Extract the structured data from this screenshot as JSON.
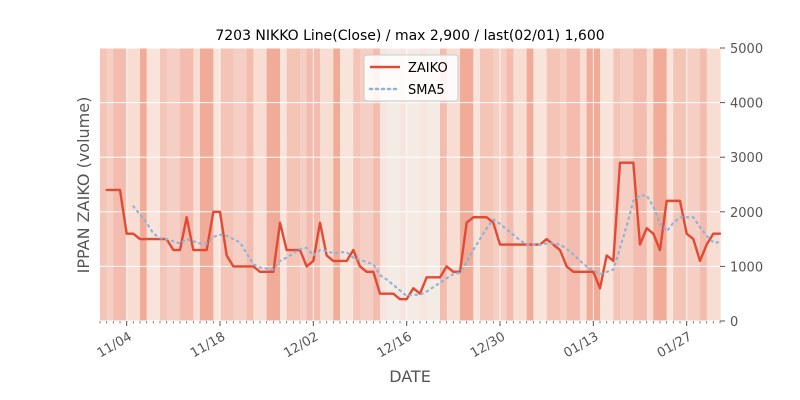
{
  "chart_data": {
    "type": "line",
    "title": "7203 NIKKO Line(Close) / max 2,900 / last(02/01) 1,600",
    "xlabel": "DATE",
    "ylabel": "IPPAN ZAIKO (volume)",
    "ylim": [
      0,
      5000
    ],
    "yticks": [
      "0",
      "1000",
      "2000",
      "3000",
      "4000",
      "5000"
    ],
    "y_axis_side": "right",
    "xtick_labels": [
      "11/04",
      "11/18",
      "12/02",
      "12/16",
      "12/30",
      "01/13",
      "01/27"
    ],
    "x_range": [
      "2024-10-31",
      "2025-02-01"
    ],
    "xtick_dates": [
      "2024-11-04",
      "2024-11-18",
      "2024-12-02",
      "2024-12-16",
      "2024-12-30",
      "2025-01-13",
      "2025-01-27"
    ],
    "grid": true,
    "legend_position": "top-center",
    "background_shading": "daily red bands, intensity varies",
    "series": [
      {
        "name": "ZAIKO",
        "color": "#e24a33",
        "style": "solid",
        "points": [
          [
            "2024-11-01",
            2400
          ],
          [
            "2024-11-02",
            2400
          ],
          [
            "2024-11-03",
            2400
          ],
          [
            "2024-11-04",
            1600
          ],
          [
            "2024-11-05",
            1600
          ],
          [
            "2024-11-06",
            1500
          ],
          [
            "2024-11-07",
            1500
          ],
          [
            "2024-11-08",
            1500
          ],
          [
            "2024-11-09",
            1500
          ],
          [
            "2024-11-10",
            1500
          ],
          [
            "2024-11-11",
            1300
          ],
          [
            "2024-11-12",
            1300
          ],
          [
            "2024-11-13",
            1900
          ],
          [
            "2024-11-14",
            1300
          ],
          [
            "2024-11-15",
            1300
          ],
          [
            "2024-11-16",
            1300
          ],
          [
            "2024-11-17",
            2000
          ],
          [
            "2024-11-18",
            2000
          ],
          [
            "2024-11-19",
            1200
          ],
          [
            "2024-11-20",
            1000
          ],
          [
            "2024-11-21",
            1000
          ],
          [
            "2024-11-22",
            1000
          ],
          [
            "2024-11-23",
            1000
          ],
          [
            "2024-11-24",
            900
          ],
          [
            "2024-11-25",
            900
          ],
          [
            "2024-11-26",
            900
          ],
          [
            "2024-11-27",
            1800
          ],
          [
            "2024-11-28",
            1300
          ],
          [
            "2024-11-29",
            1300
          ],
          [
            "2024-11-30",
            1300
          ],
          [
            "2024-12-01",
            1000
          ],
          [
            "2024-12-02",
            1100
          ],
          [
            "2024-12-03",
            1800
          ],
          [
            "2024-12-04",
            1200
          ],
          [
            "2024-12-05",
            1100
          ],
          [
            "2024-12-06",
            1100
          ],
          [
            "2024-12-07",
            1100
          ],
          [
            "2024-12-08",
            1300
          ],
          [
            "2024-12-09",
            1000
          ],
          [
            "2024-12-10",
            900
          ],
          [
            "2024-12-11",
            900
          ],
          [
            "2024-12-12",
            500
          ],
          [
            "2024-12-13",
            500
          ],
          [
            "2024-12-14",
            500
          ],
          [
            "2024-12-15",
            400
          ],
          [
            "2024-12-16",
            400
          ],
          [
            "2024-12-17",
            600
          ],
          [
            "2024-12-18",
            500
          ],
          [
            "2024-12-19",
            800
          ],
          [
            "2024-12-20",
            800
          ],
          [
            "2024-12-21",
            800
          ],
          [
            "2024-12-22",
            1000
          ],
          [
            "2024-12-23",
            900
          ],
          [
            "2024-12-24",
            900
          ],
          [
            "2024-12-25",
            1800
          ],
          [
            "2024-12-26",
            1900
          ],
          [
            "2024-12-27",
            1900
          ],
          [
            "2024-12-28",
            1900
          ],
          [
            "2024-12-29",
            1800
          ],
          [
            "2024-12-30",
            1400
          ],
          [
            "2024-12-31",
            1400
          ],
          [
            "2025-01-01",
            1400
          ],
          [
            "2025-01-02",
            1400
          ],
          [
            "2025-01-03",
            1400
          ],
          [
            "2025-01-04",
            1400
          ],
          [
            "2025-01-05",
            1400
          ],
          [
            "2025-01-06",
            1500
          ],
          [
            "2025-01-07",
            1400
          ],
          [
            "2025-01-08",
            1300
          ],
          [
            "2025-01-09",
            1000
          ],
          [
            "2025-01-10",
            900
          ],
          [
            "2025-01-11",
            900
          ],
          [
            "2025-01-12",
            900
          ],
          [
            "2025-01-13",
            900
          ],
          [
            "2025-01-14",
            600
          ],
          [
            "2025-01-15",
            1200
          ],
          [
            "2025-01-16",
            1100
          ],
          [
            "2025-01-17",
            2900
          ],
          [
            "2025-01-18",
            2900
          ],
          [
            "2025-01-19",
            2900
          ],
          [
            "2025-01-20",
            1400
          ],
          [
            "2025-01-21",
            1700
          ],
          [
            "2025-01-22",
            1600
          ],
          [
            "2025-01-23",
            1300
          ],
          [
            "2025-01-24",
            2200
          ],
          [
            "2025-01-25",
            2200
          ],
          [
            "2025-01-26",
            2200
          ],
          [
            "2025-01-27",
            1600
          ],
          [
            "2025-01-28",
            1500
          ],
          [
            "2025-01-29",
            1100
          ],
          [
            "2025-01-30",
            1400
          ],
          [
            "2025-01-31",
            1600
          ],
          [
            "2025-02-01",
            1600
          ]
        ]
      },
      {
        "name": "SMA5",
        "color": "#8eb4d6",
        "style": "dotted",
        "points": [
          [
            "2024-11-05",
            2100
          ],
          [
            "2024-11-06",
            1950
          ],
          [
            "2024-11-07",
            1800
          ],
          [
            "2024-11-08",
            1600
          ],
          [
            "2024-11-09",
            1520
          ],
          [
            "2024-11-10",
            1500
          ],
          [
            "2024-11-11",
            1460
          ],
          [
            "2024-11-12",
            1420
          ],
          [
            "2024-11-13",
            1500
          ],
          [
            "2024-11-14",
            1460
          ],
          [
            "2024-11-15",
            1420
          ],
          [
            "2024-11-16",
            1420
          ],
          [
            "2024-11-17",
            1540
          ],
          [
            "2024-11-18",
            1580
          ],
          [
            "2024-11-19",
            1560
          ],
          [
            "2024-11-20",
            1500
          ],
          [
            "2024-11-21",
            1440
          ],
          [
            "2024-11-22",
            1240
          ],
          [
            "2024-11-23",
            1040
          ],
          [
            "2024-11-24",
            980
          ],
          [
            "2024-11-25",
            960
          ],
          [
            "2024-11-26",
            940
          ],
          [
            "2024-11-27",
            1100
          ],
          [
            "2024-11-28",
            1160
          ],
          [
            "2024-11-29",
            1240
          ],
          [
            "2024-11-30",
            1320
          ],
          [
            "2024-12-01",
            1340
          ],
          [
            "2024-12-02",
            1200
          ],
          [
            "2024-12-03",
            1300
          ],
          [
            "2024-12-04",
            1280
          ],
          [
            "2024-12-05",
            1240
          ],
          [
            "2024-12-06",
            1260
          ],
          [
            "2024-12-07",
            1260
          ],
          [
            "2024-12-08",
            1160
          ],
          [
            "2024-12-09",
            1120
          ],
          [
            "2024-12-10",
            1080
          ],
          [
            "2024-12-11",
            1040
          ],
          [
            "2024-12-12",
            840
          ],
          [
            "2024-12-13",
            760
          ],
          [
            "2024-12-14",
            660
          ],
          [
            "2024-12-15",
            560
          ],
          [
            "2024-12-16",
            460
          ],
          [
            "2024-12-17",
            480
          ],
          [
            "2024-12-18",
            480
          ],
          [
            "2024-12-19",
            540
          ],
          [
            "2024-12-20",
            620
          ],
          [
            "2024-12-21",
            700
          ],
          [
            "2024-12-22",
            780
          ],
          [
            "2024-12-23",
            860
          ],
          [
            "2024-12-24",
            880
          ],
          [
            "2024-12-25",
            1080
          ],
          [
            "2024-12-26",
            1300
          ],
          [
            "2024-12-27",
            1500
          ],
          [
            "2024-12-28",
            1700
          ],
          [
            "2024-12-29",
            1860
          ],
          [
            "2024-12-30",
            1780
          ],
          [
            "2024-12-31",
            1680
          ],
          [
            "2025-01-01",
            1580
          ],
          [
            "2025-01-02",
            1480
          ],
          [
            "2025-01-03",
            1400
          ],
          [
            "2025-01-04",
            1400
          ],
          [
            "2025-01-05",
            1400
          ],
          [
            "2025-01-06",
            1420
          ],
          [
            "2025-01-07",
            1420
          ],
          [
            "2025-01-08",
            1400
          ],
          [
            "2025-01-09",
            1320
          ],
          [
            "2025-01-10",
            1220
          ],
          [
            "2025-01-11",
            1100
          ],
          [
            "2025-01-12",
            1000
          ],
          [
            "2025-01-13",
            920
          ],
          [
            "2025-01-14",
            860
          ],
          [
            "2025-01-15",
            900
          ],
          [
            "2025-01-16",
            940
          ],
          [
            "2025-01-17",
            1340
          ],
          [
            "2025-01-18",
            1740
          ],
          [
            "2025-01-19",
            2200
          ],
          [
            "2025-01-20",
            2300
          ],
          [
            "2025-01-21",
            2300
          ],
          [
            "2025-01-22",
            2100
          ],
          [
            "2025-01-23",
            1780
          ],
          [
            "2025-01-24",
            1640
          ],
          [
            "2025-01-25",
            1800
          ],
          [
            "2025-01-26",
            1900
          ],
          [
            "2025-01-27",
            1900
          ],
          [
            "2025-01-28",
            1900
          ],
          [
            "2025-01-29",
            1720
          ],
          [
            "2025-01-30",
            1560
          ],
          [
            "2025-01-31",
            1440
          ],
          [
            "2025-02-01",
            1440
          ]
        ]
      }
    ]
  }
}
